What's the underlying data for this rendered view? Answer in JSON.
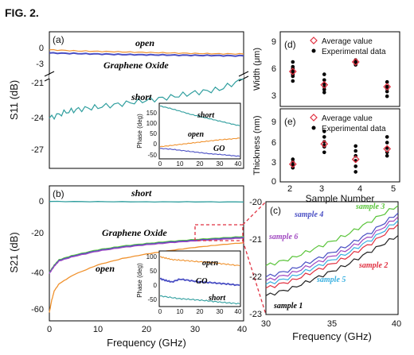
{
  "figure": {
    "label": "FIG. 2."
  },
  "colors": {
    "open": "#f0922e",
    "short": "#2f9e9e",
    "go": "#4a4fc4",
    "axis": "#000000",
    "sample1": "#222222",
    "sample2": "#e03040",
    "sample3": "#5ac43a",
    "sample4": "#4a4fc4",
    "sample5": "#38b0e0",
    "sample6": "#a048c0",
    "avg": "#e03040",
    "exp": "#000000"
  },
  "chart_data": [
    {
      "id": "a",
      "type": "line",
      "panel_label": "(a)",
      "xlabel": "",
      "ylabel": "S11 (dB)",
      "xlim": [
        0,
        40
      ],
      "y_ticks": [
        "0",
        "-3",
        "-21",
        "-24",
        "-27"
      ],
      "series": [
        {
          "name": "open",
          "x": [
            0,
            5,
            10,
            15,
            20,
            25,
            30,
            35,
            40
          ],
          "y": [
            -0.4,
            -0.6,
            -0.7,
            -0.8,
            -0.9,
            -1.0,
            -1.1,
            -1.15,
            -1.2
          ]
        },
        {
          "name": "Graphene Oxide",
          "x": [
            0,
            5,
            10,
            15,
            20,
            25,
            30,
            35,
            40
          ],
          "y": [
            -1.0,
            -1.1,
            -1.2,
            -1.3,
            -1.35,
            -1.4,
            -1.45,
            -1.5,
            -1.55
          ]
        },
        {
          "name": "short",
          "x": [
            0,
            3,
            6,
            10,
            15,
            20,
            25,
            30,
            35,
            40
          ],
          "y": [
            -24.2,
            -23.7,
            -23.4,
            -23.2,
            -22.9,
            -22.6,
            -22.3,
            -21.9,
            -21.6,
            -20.7
          ]
        }
      ],
      "inset": {
        "xlabel": "",
        "ylabel": "Phase (deg)",
        "xlim": [
          0,
          40
        ],
        "x_ticks": [
          "0",
          "10",
          "20",
          "30",
          "40"
        ],
        "y_ticks": [
          "150",
          "100",
          "50",
          "0",
          "-50"
        ],
        "ylim": [
          -50,
          175
        ],
        "series": [
          {
            "name": "short",
            "x": [
              0,
              5,
              10,
              15,
              20,
              25,
              30,
              35,
              40
            ],
            "y": [
              170,
              160,
              148,
              135,
              125,
              115,
              105,
              95,
              85
            ]
          },
          {
            "name": "open",
            "x": [
              0,
              5,
              10,
              15,
              20,
              25,
              30,
              35,
              40
            ],
            "y": [
              -5,
              0,
              5,
              10,
              15,
              20,
              25,
              28,
              32
            ]
          },
          {
            "name": "GO",
            "x": [
              0,
              5,
              10,
              15,
              20,
              25,
              30,
              35,
              40
            ],
            "y": [
              -12,
              -15,
              -20,
              -25,
              -30,
              -35,
              -38,
              -42,
              -46
            ]
          }
        ]
      }
    },
    {
      "id": "b",
      "type": "line",
      "panel_label": "(b)",
      "xlabel": "Frequency (GHz)",
      "ylabel": "S21 (dB)",
      "xlim": [
        0,
        40
      ],
      "ylim": [
        -65,
        3
      ],
      "x_ticks": [
        "0",
        "10",
        "20",
        "30",
        "40"
      ],
      "y_ticks": [
        "0",
        "-20",
        "-40",
        "-60"
      ],
      "series": [
        {
          "name": "short",
          "x": [
            0,
            10,
            20,
            30,
            40
          ],
          "y": [
            -0.3,
            -0.4,
            -0.5,
            -0.5,
            -0.6
          ]
        },
        {
          "name": "Graphene Oxide",
          "x": [
            0,
            1,
            2,
            5,
            10,
            15,
            20,
            25,
            30,
            35,
            40
          ],
          "y": [
            -40,
            -36,
            -33,
            -30.5,
            -27.5,
            -25.5,
            -24,
            -22.8,
            -21.8,
            -21,
            -20.2
          ]
        },
        {
          "name": "open",
          "x": [
            0,
            0.5,
            1,
            2,
            5,
            10,
            15,
            20,
            25,
            30,
            35,
            40
          ],
          "y": [
            -62,
            -55,
            -50,
            -46,
            -41,
            -35.5,
            -32,
            -29.5,
            -27.5,
            -25.8,
            -24.4,
            -23.2
          ]
        }
      ],
      "inset": {
        "xlabel": "Frequency (GHz)",
        "ylabel": "Phase (deg)",
        "xlim": [
          0,
          40
        ],
        "x_ticks": [
          "0",
          "10",
          "20",
          "30",
          "40"
        ],
        "y_ticks": [
          "100",
          "50",
          "0",
          "-50"
        ],
        "ylim": [
          -75,
          115
        ],
        "series": [
          {
            "name": "open",
            "x": [
              0,
              3,
              6,
              10,
              15,
              20,
              25,
              30,
              35,
              40
            ],
            "y": [
              100,
              95,
              90,
              88,
              85,
              82,
              80,
              76,
              72,
              68
            ]
          },
          {
            "name": "GO",
            "x": [
              0,
              3,
              6,
              10,
              15,
              20,
              25,
              30,
              35,
              40
            ],
            "y": [
              22,
              15,
              10,
              20,
              15,
              10,
              8,
              5,
              2,
              -2
            ]
          },
          {
            "name": "short",
            "x": [
              0,
              5,
              10,
              15,
              20,
              25,
              30,
              35,
              40
            ],
            "y": [
              -40,
              -45,
              -50,
              -52,
              -55,
              -58,
              -62,
              -65,
              -68
            ]
          }
        ]
      }
    },
    {
      "id": "c",
      "type": "line",
      "panel_label": "(c)",
      "xlabel": "Frequency (GHz)",
      "ylabel": "",
      "xlim": [
        30,
        40
      ],
      "ylim": [
        -23,
        -20
      ],
      "x_ticks": [
        "30",
        "35",
        "40"
      ],
      "y_ticks": [
        "-20",
        "-21",
        "-22",
        "-23"
      ],
      "series": [
        {
          "name": "sample 1",
          "x": [
            30,
            32,
            34,
            36,
            38,
            40
          ],
          "y": [
            -22.5,
            -22.3,
            -22.0,
            -21.7,
            -21.3,
            -20.9
          ]
        },
        {
          "name": "sample 2",
          "x": [
            30,
            32,
            34,
            36,
            38,
            40
          ],
          "y": [
            -22.3,
            -22.1,
            -21.8,
            -21.5,
            -21.1,
            -20.6
          ]
        },
        {
          "name": "sample 5",
          "x": [
            30,
            32,
            34,
            36,
            38,
            40
          ],
          "y": [
            -22.2,
            -22.0,
            -21.7,
            -21.4,
            -21.0,
            -20.5
          ]
        },
        {
          "name": "sample 6",
          "x": [
            30,
            32,
            34,
            36,
            38,
            40
          ],
          "y": [
            -22.1,
            -21.9,
            -21.6,
            -21.3,
            -20.9,
            -20.4
          ]
        },
        {
          "name": "sample 4",
          "x": [
            30,
            32,
            34,
            36,
            38,
            40
          ],
          "y": [
            -22.0,
            -21.8,
            -21.5,
            -21.2,
            -20.8,
            -20.3
          ]
        },
        {
          "name": "sample 3",
          "x": [
            30,
            32,
            34,
            36,
            38,
            40
          ],
          "y": [
            -21.7,
            -21.5,
            -21.2,
            -20.9,
            -20.5,
            -20.1
          ]
        }
      ]
    },
    {
      "id": "d",
      "type": "scatter",
      "panel_label": "(d)",
      "xlabel": "",
      "ylabel": "Width (μm)",
      "xlim": [
        1.6,
        5.4
      ],
      "ylim": [
        2,
        9.5
      ],
      "y_ticks": [
        "9",
        "6",
        "3"
      ],
      "legend": [
        "Average value",
        "Experimental data"
      ],
      "average": [
        {
          "x": 2,
          "y": 5.5
        },
        {
          "x": 3,
          "y": 4.1
        },
        {
          "x": 4,
          "y": 6.5
        },
        {
          "x": 5,
          "y": 3.9
        }
      ],
      "experimental": [
        {
          "x": 2,
          "y": [
            4.5,
            5.0,
            5.5,
            6.0,
            6.5,
            5.2,
            5.8
          ]
        },
        {
          "x": 3,
          "y": [
            3.3,
            3.6,
            4.2,
            4.6,
            5.2,
            3.9
          ]
        },
        {
          "x": 4,
          "y": [
            6.2,
            6.5,
            6.7,
            6.4
          ]
        },
        {
          "x": 5,
          "y": [
            2.9,
            3.4,
            3.9,
            4.4,
            3.7
          ]
        }
      ]
    },
    {
      "id": "e",
      "type": "scatter",
      "panel_label": "(e)",
      "xlabel": "Sample Number",
      "ylabel": "Thickness (nm)",
      "xlim": [
        1.6,
        5.4
      ],
      "ylim": [
        0,
        10
      ],
      "x_ticks": [
        "2",
        "3",
        "4",
        "5"
      ],
      "y_ticks": [
        "9",
        "6",
        "3",
        "0"
      ],
      "legend": [
        "Average value",
        "Experimental data"
      ],
      "average": [
        {
          "x": 2,
          "y": 2.3
        },
        {
          "x": 3,
          "y": 5.2
        },
        {
          "x": 4,
          "y": 3.0
        },
        {
          "x": 5,
          "y": 4.5
        }
      ],
      "experimental": [
        {
          "x": 2,
          "y": [
            1.8,
            2.2,
            2.6,
            3.0
          ]
        },
        {
          "x": 3,
          "y": [
            4.0,
            4.8,
            5.5,
            6.2,
            7.0,
            5.0
          ]
        },
        {
          "x": 4,
          "y": [
            1.2,
            2.0,
            2.8,
            3.5,
            4.2,
            4.9
          ]
        },
        {
          "x": 5,
          "y": [
            3.5,
            4.0,
            4.6,
            5.4,
            6.2
          ]
        }
      ]
    }
  ]
}
